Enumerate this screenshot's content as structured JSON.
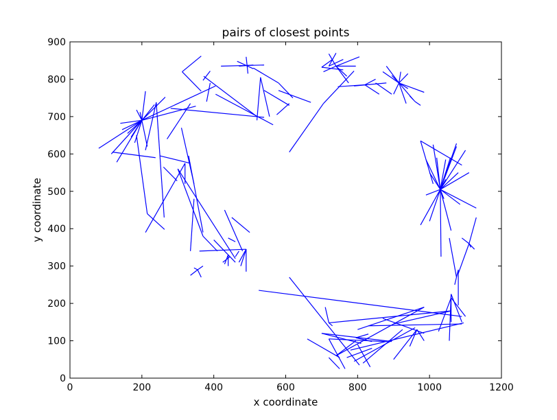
{
  "chart_data": {
    "type": "line",
    "title": "pairs of closest points",
    "xlabel": "x coordinate",
    "ylabel": "y coordinate",
    "xlim": [
      0,
      1200
    ],
    "ylim": [
      0,
      900
    ],
    "xticks": [
      0,
      200,
      400,
      600,
      800,
      1000,
      1200
    ],
    "yticks": [
      0,
      100,
      200,
      300,
      400,
      500,
      600,
      700,
      800,
      900
    ],
    "grid": false,
    "color": "#0000ff",
    "segments": [
      [
        [
          200,
          690
        ],
        [
          80,
          615
        ]
      ],
      [
        [
          200,
          690
        ],
        [
          115,
          600
        ]
      ],
      [
        [
          200,
          690
        ],
        [
          130,
          578
        ]
      ],
      [
        [
          200,
          690
        ],
        [
          145,
          665
        ]
      ],
      [
        [
          200,
          690
        ],
        [
          140,
          682
        ]
      ],
      [
        [
          200,
          690
        ],
        [
          170,
          645
        ]
      ],
      [
        [
          200,
          690
        ],
        [
          185,
          718
        ]
      ],
      [
        [
          200,
          690
        ],
        [
          210,
          768
        ]
      ],
      [
        [
          200,
          690
        ],
        [
          235,
          732
        ]
      ],
      [
        [
          200,
          690
        ],
        [
          265,
          752
        ]
      ],
      [
        [
          200,
          690
        ],
        [
          180,
          630
        ]
      ],
      [
        [
          200,
          690
        ],
        [
          405,
          782
        ]
      ],
      [
        [
          200,
          690
        ],
        [
          350,
          728
        ]
      ],
      [
        [
          200,
          690
        ],
        [
          215,
          620
        ]
      ],
      [
        [
          200,
          690
        ],
        [
          160,
          655
        ]
      ],
      [
        [
          200,
          690
        ],
        [
          195,
          712
        ]
      ],
      [
        [
          118,
          605
        ],
        [
          238,
          590
        ]
      ],
      [
        [
          185,
          650
        ],
        [
          215,
          440
        ]
      ],
      [
        [
          215,
          440
        ],
        [
          263,
          398
        ]
      ],
      [
        [
          210,
          610
        ],
        [
          240,
          738
        ]
      ],
      [
        [
          240,
          738
        ],
        [
          262,
          430
        ]
      ],
      [
        [
          210,
          390
        ],
        [
          320,
          575
        ]
      ],
      [
        [
          320,
          575
        ],
        [
          320,
          520
        ]
      ],
      [
        [
          260,
          565
        ],
        [
          298,
          528
        ]
      ],
      [
        [
          280,
          722
        ],
        [
          540,
          698
        ]
      ],
      [
        [
          405,
          760
        ],
        [
          565,
          678
        ]
      ],
      [
        [
          310,
          670
        ],
        [
          345,
          520
        ]
      ],
      [
        [
          270,
          640
        ],
        [
          335,
          735
        ]
      ],
      [
        [
          312,
          820
        ],
        [
          365,
          862
        ]
      ],
      [
        [
          312,
          820
        ],
        [
          365,
          768
        ]
      ],
      [
        [
          420,
          835
        ],
        [
          540,
          838
        ]
      ],
      [
        [
          470,
          835
        ],
        [
          510,
          838
        ]
      ],
      [
        [
          490,
          860
        ],
        [
          495,
          815
        ]
      ],
      [
        [
          465,
          848
        ],
        [
          510,
          828
        ]
      ],
      [
        [
          520,
          700
        ],
        [
          372,
          808
        ]
      ],
      [
        [
          390,
          790
        ],
        [
          380,
          740
        ]
      ],
      [
        [
          520,
          690
        ],
        [
          530,
          805
        ]
      ],
      [
        [
          530,
          805
        ],
        [
          555,
          700
        ]
      ],
      [
        [
          390,
          822
        ],
        [
          370,
          797
        ]
      ],
      [
        [
          610,
          735
        ],
        [
          575,
          705
        ]
      ],
      [
        [
          580,
          790
        ],
        [
          510,
          830
        ]
      ],
      [
        [
          580,
          790
        ],
        [
          620,
          750
        ]
      ],
      [
        [
          540,
          770
        ],
        [
          610,
          730
        ]
      ],
      [
        [
          670,
          738
        ],
        [
          580,
          770
        ]
      ],
      [
        [
          610,
          605
        ],
        [
          705,
          735
        ]
      ],
      [
        [
          705,
          735
        ],
        [
          790,
          822
        ]
      ],
      [
        [
          720,
          835
        ],
        [
          740,
          870
        ]
      ],
      [
        [
          720,
          835
        ],
        [
          760,
          853
        ]
      ],
      [
        [
          740,
          835
        ],
        [
          805,
          860
        ]
      ],
      [
        [
          740,
          835
        ],
        [
          705,
          820
        ]
      ],
      [
        [
          740,
          835
        ],
        [
          770,
          808
        ]
      ],
      [
        [
          740,
          835
        ],
        [
          720,
          868
        ]
      ],
      [
        [
          740,
          835
        ],
        [
          795,
          835
        ]
      ],
      [
        [
          740,
          835
        ],
        [
          775,
          790
        ]
      ],
      [
        [
          700,
          832
        ],
        [
          760,
          825
        ]
      ],
      [
        [
          700,
          832
        ],
        [
          730,
          853
        ]
      ],
      [
        [
          745,
          780
        ],
        [
          820,
          785
        ]
      ],
      [
        [
          820,
          785
        ],
        [
          860,
          760
        ]
      ],
      [
        [
          820,
          785
        ],
        [
          850,
          800
        ]
      ],
      [
        [
          790,
          782
        ],
        [
          880,
          790
        ]
      ],
      [
        [
          850,
          790
        ],
        [
          895,
          760
        ]
      ],
      [
        [
          915,
          790
        ],
        [
          880,
          835
        ]
      ],
      [
        [
          915,
          790
        ],
        [
          870,
          820
        ]
      ],
      [
        [
          915,
          790
        ],
        [
          940,
          775
        ]
      ],
      [
        [
          915,
          790
        ],
        [
          895,
          810
        ]
      ],
      [
        [
          915,
          790
        ],
        [
          985,
          765
        ]
      ],
      [
        [
          915,
          790
        ],
        [
          900,
          760
        ]
      ],
      [
        [
          915,
          790
        ],
        [
          940,
          815
        ]
      ],
      [
        [
          915,
          790
        ],
        [
          920,
          820
        ]
      ],
      [
        [
          915,
          790
        ],
        [
          935,
          735
        ]
      ],
      [
        [
          915,
          790
        ],
        [
          955,
          745
        ]
      ],
      [
        [
          960,
          740
        ],
        [
          945,
          755
        ]
      ],
      [
        [
          960,
          740
        ],
        [
          975,
          730
        ]
      ],
      [
        [
          975,
          635
        ],
        [
          1010,
          520
        ]
      ],
      [
        [
          975,
          635
        ],
        [
          1090,
          570
        ]
      ],
      [
        [
          1030,
          505
        ],
        [
          1000,
          550
        ]
      ],
      [
        [
          1030,
          505
        ],
        [
          990,
          585
        ]
      ],
      [
        [
          1030,
          505
        ],
        [
          1010,
          625
        ]
      ],
      [
        [
          1030,
          505
        ],
        [
          1075,
          628
        ]
      ],
      [
        [
          1030,
          505
        ],
        [
          1058,
          590
        ]
      ],
      [
        [
          1030,
          505
        ],
        [
          1100,
          610
        ]
      ],
      [
        [
          1030,
          505
        ],
        [
          1110,
          550
        ]
      ],
      [
        [
          1030,
          505
        ],
        [
          1130,
          455
        ]
      ],
      [
        [
          1030,
          505
        ],
        [
          1085,
          465
        ]
      ],
      [
        [
          1030,
          505
        ],
        [
          1060,
          395
        ]
      ],
      [
        [
          1030,
          505
        ],
        [
          1000,
          420
        ]
      ],
      [
        [
          1030,
          505
        ],
        [
          975,
          410
        ]
      ],
      [
        [
          1030,
          505
        ],
        [
          990,
          490
        ]
      ],
      [
        [
          1030,
          505
        ],
        [
          1040,
          480
        ]
      ],
      [
        [
          1030,
          505
        ],
        [
          1032,
          325
        ]
      ],
      [
        [
          1030,
          505
        ],
        [
          1020,
          590
        ]
      ],
      [
        [
          1030,
          505
        ],
        [
          1045,
          585
        ]
      ],
      [
        [
          1030,
          505
        ],
        [
          1045,
          532
        ]
      ],
      [
        [
          1030,
          505
        ],
        [
          1080,
          550
        ]
      ],
      [
        [
          1030,
          505
        ],
        [
          1075,
          620
        ]
      ],
      [
        [
          1110,
          360
        ],
        [
          1130,
          430
        ]
      ],
      [
        [
          1110,
          360
        ],
        [
          1090,
          375
        ]
      ],
      [
        [
          1110,
          360
        ],
        [
          1125,
          345
        ]
      ],
      [
        [
          1110,
          360
        ],
        [
          1080,
          280
        ]
      ],
      [
        [
          1110,
          360
        ],
        [
          1115,
          350
        ]
      ],
      [
        [
          1055,
          375
        ],
        [
          1075,
          270
        ]
      ],
      [
        [
          1080,
          290
        ],
        [
          1070,
          250
        ]
      ],
      [
        [
          1080,
          290
        ],
        [
          1080,
          195
        ]
      ],
      [
        [
          1060,
          225
        ],
        [
          1055,
          100
        ]
      ],
      [
        [
          1060,
          225
        ],
        [
          1090,
          150
        ]
      ],
      [
        [
          1060,
          215
        ],
        [
          1100,
          165
        ]
      ],
      [
        [
          1060,
          215
        ],
        [
          1060,
          150
        ]
      ],
      [
        [
          1060,
          215
        ],
        [
          1025,
          125
        ]
      ],
      [
        [
          525,
          235
        ],
        [
          1090,
          165
        ]
      ],
      [
        [
          720,
          148
        ],
        [
          1060,
          180
        ]
      ],
      [
        [
          720,
          148
        ],
        [
          710,
          190
        ]
      ],
      [
        [
          720,
          148
        ],
        [
          730,
          140
        ]
      ],
      [
        [
          985,
          190
        ],
        [
          800,
          130
        ]
      ],
      [
        [
          985,
          190
        ],
        [
          740,
          60
        ]
      ],
      [
        [
          1060,
          180
        ],
        [
          900,
          145
        ]
      ],
      [
        [
          1090,
          145
        ],
        [
          830,
          140
        ]
      ],
      [
        [
          1095,
          148
        ],
        [
          780,
          75
        ]
      ],
      [
        [
          965,
          130
        ],
        [
          945,
          85
        ]
      ],
      [
        [
          965,
          130
        ],
        [
          900,
          50
        ]
      ],
      [
        [
          965,
          130
        ],
        [
          985,
          100
        ]
      ],
      [
        [
          870,
          160
        ],
        [
          985,
          120
        ]
      ],
      [
        [
          700,
          120
        ],
        [
          895,
          98
        ]
      ],
      [
        [
          700,
          120
        ],
        [
          810,
          93
        ]
      ],
      [
        [
          720,
          105
        ],
        [
          765,
          25
        ]
      ],
      [
        [
          720,
          105
        ],
        [
          875,
          98
        ]
      ],
      [
        [
          795,
          108
        ],
        [
          840,
          98
        ]
      ],
      [
        [
          795,
          108
        ],
        [
          830,
          118
        ]
      ],
      [
        [
          800,
          90
        ],
        [
          835,
          30
        ]
      ],
      [
        [
          770,
          55
        ],
        [
          840,
          80
        ]
      ],
      [
        [
          790,
          45
        ],
        [
          960,
          135
        ]
      ],
      [
        [
          815,
          40
        ],
        [
          925,
          130
        ]
      ],
      [
        [
          720,
          55
        ],
        [
          750,
          25
        ]
      ],
      [
        [
          660,
          105
        ],
        [
          750,
          55
        ]
      ],
      [
        [
          740,
          60
        ],
        [
          795,
          100
        ]
      ],
      [
        [
          610,
          270
        ],
        [
          805,
          35
        ]
      ],
      [
        [
          300,
          560
        ],
        [
          460,
          320
        ]
      ],
      [
        [
          300,
          560
        ],
        [
          370,
          380
        ]
      ],
      [
        [
          330,
          595
        ],
        [
          370,
          390
        ]
      ],
      [
        [
          345,
          480
        ],
        [
          335,
          340
        ]
      ],
      [
        [
          430,
          450
        ],
        [
          480,
          340
        ]
      ],
      [
        [
          360,
          340
        ],
        [
          490,
          345
        ]
      ],
      [
        [
          370,
          380
        ],
        [
          410,
          340
        ]
      ],
      [
        [
          490,
          345
        ],
        [
          470,
          310
        ]
      ],
      [
        [
          490,
          345
        ],
        [
          475,
          300
        ]
      ],
      [
        [
          490,
          345
        ],
        [
          490,
          285
        ]
      ],
      [
        [
          440,
          375
        ],
        [
          460,
          365
        ]
      ],
      [
        [
          440,
          330
        ],
        [
          440,
          300
        ]
      ],
      [
        [
          440,
          330
        ],
        [
          430,
          305
        ]
      ],
      [
        [
          440,
          330
        ],
        [
          400,
          370
        ]
      ],
      [
        [
          440,
          330
        ],
        [
          460,
          310
        ]
      ],
      [
        [
          355,
          290
        ],
        [
          335,
          275
        ]
      ],
      [
        [
          355,
          290
        ],
        [
          370,
          300
        ]
      ],
      [
        [
          355,
          290
        ],
        [
          345,
          295
        ]
      ],
      [
        [
          355,
          290
        ],
        [
          365,
          270
        ]
      ],
      [
        [
          425,
          310
        ],
        [
          445,
          325
        ]
      ],
      [
        [
          460,
          325
        ],
        [
          470,
          340
        ]
      ],
      [
        [
          500,
          390
        ],
        [
          450,
          430
        ]
      ],
      [
        [
          250,
          595
        ],
        [
          335,
          575
        ]
      ]
    ]
  }
}
